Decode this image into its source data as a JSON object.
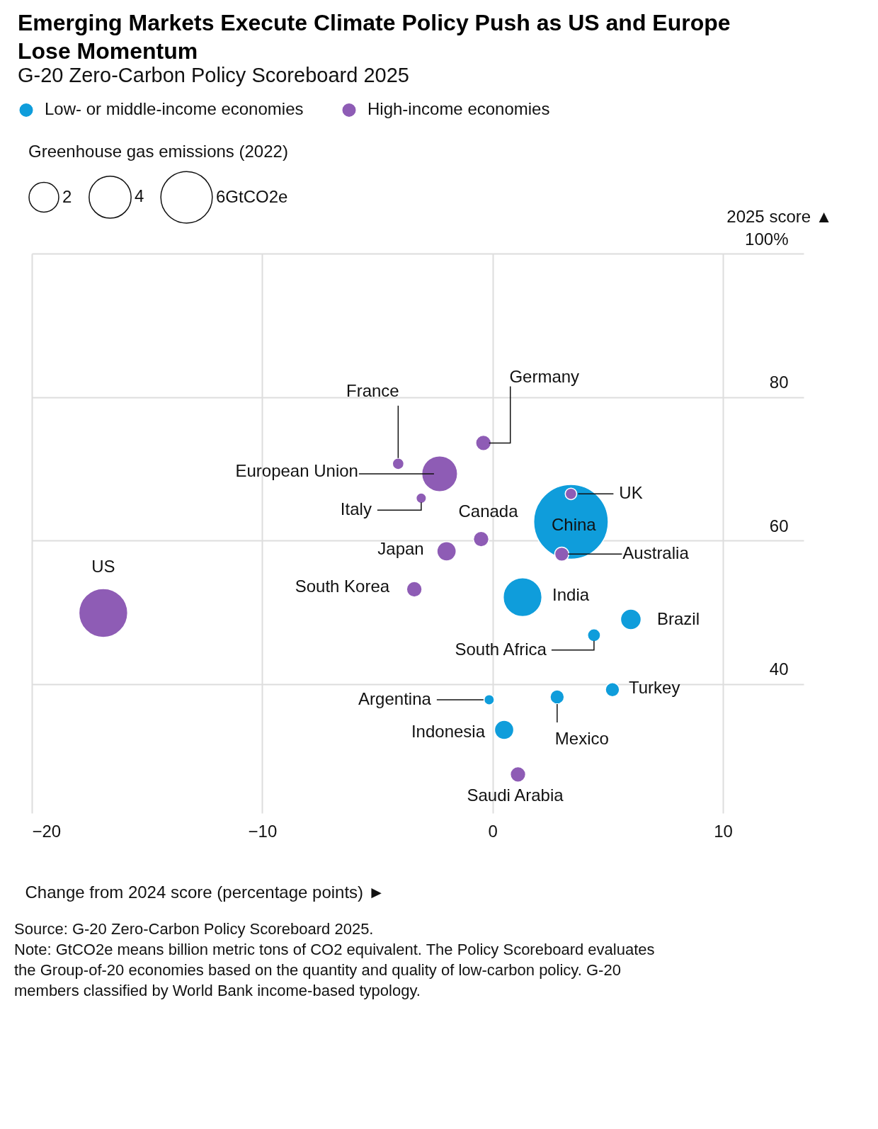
{
  "chart_data": {
    "type": "bubble",
    "title": "Emerging Markets Execute Climate Policy Push as US and Europe Lose Momentum",
    "subtitle": "G-20 Zero-Carbon Policy Scoreboard 2025",
    "xlabel": "Change from 2024 score (percentage points) ►",
    "ylabel": "2025 score ▲",
    "legend_title": "Greenhouse gas emissions (2022)",
    "size_legend": [
      2,
      4,
      {
        "value": 6,
        "label": "6GtCO2e"
      }
    ],
    "xlim": [
      -20,
      13.5
    ],
    "xticks": [
      -20,
      -10,
      0,
      10
    ],
    "ylim": [
      22,
      100
    ],
    "yticks": [
      40,
      60,
      80,
      {
        "value": 100,
        "label": "100%"
      }
    ],
    "grid": true,
    "legend": "top left",
    "series": [
      {
        "name": "Low- or middle-income economies",
        "color": "#0f9ddb",
        "x": [
          3.4,
          1.3,
          6.0,
          4.4,
          5.2,
          -0.15,
          2.8,
          0.5
        ],
        "values": [
          62.6,
          52.1,
          49.0,
          46.8,
          39.2,
          37.8,
          38.2,
          33.6
        ],
        "sizes": [
          12.6,
          3.4,
          0.96,
          0.38,
          0.45,
          0.24,
          0.45,
          0.84
        ]
      },
      {
        "name": "High-income economies",
        "color": "#8e5cb5",
        "x": [
          -16.9,
          -4.1,
          -0.4,
          -2.3,
          -3.1,
          -0.5,
          -2.0,
          -3.4,
          3.4,
          3.0,
          1.1
        ],
        "values": [
          49.9,
          70.7,
          73.6,
          69.3,
          65.9,
          60.2,
          58.5,
          53.2,
          66.5,
          58.1,
          27.4
        ],
        "sizes": [
          5.4,
          0.3,
          0.54,
          2.9,
          0.24,
          0.54,
          0.84,
          0.54,
          0.3,
          0.45,
          0.54
        ]
      }
    ],
    "annotations": [
      {
        "text": "US",
        "x": -16.9,
        "y": 49.9
      },
      {
        "text": "France",
        "x": -4.1,
        "y": 70.7
      },
      {
        "text": "Germany",
        "x": -0.4,
        "y": 73.6
      },
      {
        "text": "European Union",
        "x": -2.3,
        "y": 69.3
      },
      {
        "text": "Italy",
        "x": -3.1,
        "y": 65.9
      },
      {
        "text": "Canada",
        "x": -0.5,
        "y": 60.2
      },
      {
        "text": "Japan",
        "x": -2.0,
        "y": 58.5
      },
      {
        "text": "South Korea",
        "x": -3.4,
        "y": 53.2
      },
      {
        "text": "UK",
        "x": 3.4,
        "y": 66.5
      },
      {
        "text": "China",
        "x": 3.4,
        "y": 62.6
      },
      {
        "text": "Australia",
        "x": 3.0,
        "y": 58.1
      },
      {
        "text": "India",
        "x": 1.3,
        "y": 52.1
      },
      {
        "text": "Brazil",
        "x": 6.0,
        "y": 49.0
      },
      {
        "text": "South Africa",
        "x": 4.4,
        "y": 46.8
      },
      {
        "text": "Turkey",
        "x": 5.2,
        "y": 39.2
      },
      {
        "text": "Argentina",
        "x": -0.15,
        "y": 37.8
      },
      {
        "text": "Mexico",
        "x": 2.8,
        "y": 38.2
      },
      {
        "text": "Indonesia",
        "x": 0.5,
        "y": 33.6
      },
      {
        "text": "Saudi Arabia",
        "x": 1.1,
        "y": 27.4
      },
      "Source: G-20 Zero-Carbon Policy Scoreboard 2025.",
      "Note: GtCO2e means billion metric tons of CO2 equivalent. The Policy Scoreboard evaluates the Group-of-20 economies based on the quantity and quality of low-carbon policy. G-20 members classified by World Bank income-based typology."
    ]
  }
}
